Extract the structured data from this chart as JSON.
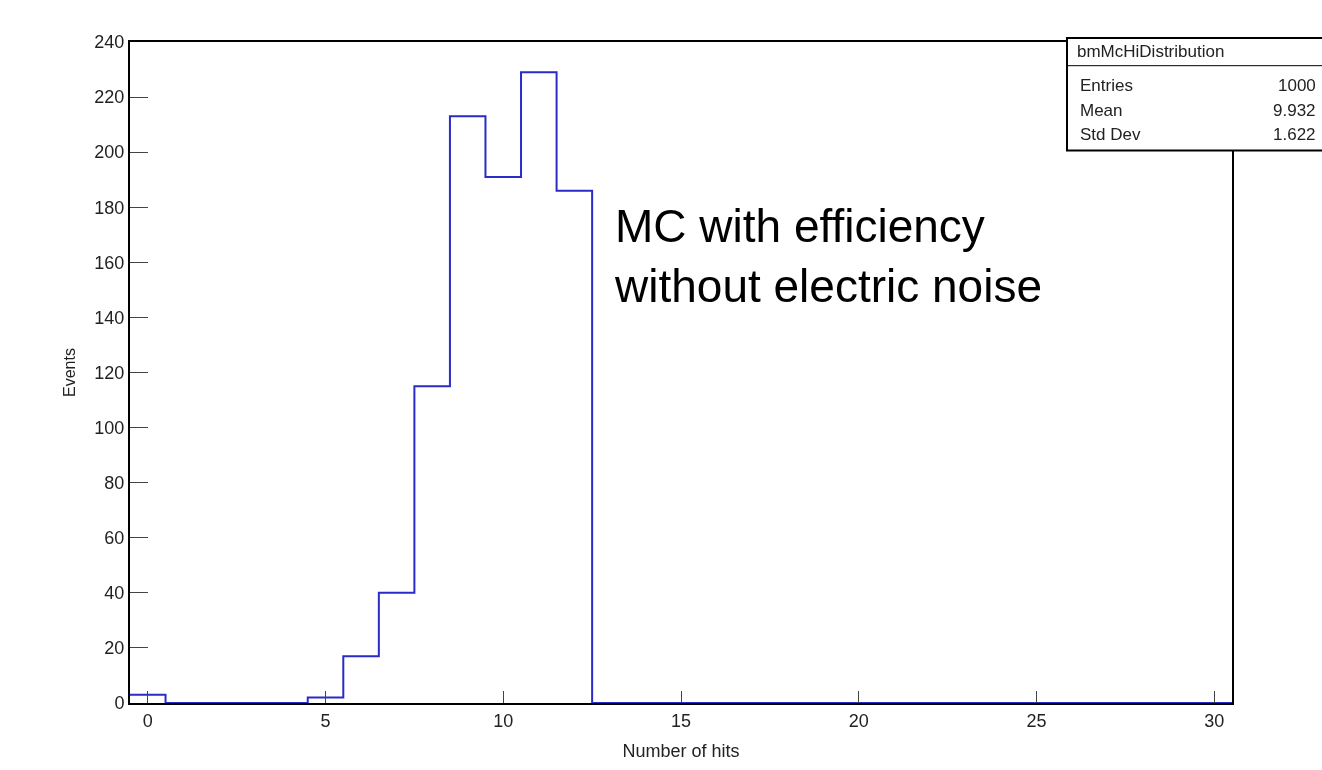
{
  "chart_data": {
    "type": "histogram",
    "xlabel": "Number of hits",
    "ylabel": "Events",
    "bins": [
      -0.5,
      0.5,
      1.5,
      2.5,
      3.5,
      4.5,
      5.5,
      6.5,
      7.5,
      8.5,
      9.5,
      10.5,
      11.5,
      12.5,
      13.5,
      14.5,
      15.5,
      16.5,
      17.5,
      18.5,
      19.5,
      20.5,
      21.5,
      22.5,
      23.5,
      24.5,
      25.5,
      26.5,
      27.5,
      28.5,
      29.5,
      30.5
    ],
    "values": [
      3,
      0,
      0,
      0,
      0,
      2,
      17,
      40,
      115,
      213,
      191,
      229,
      186,
      0,
      0,
      0,
      0,
      0,
      0,
      0,
      0,
      0,
      0,
      0,
      0,
      0,
      0,
      0,
      0,
      0,
      0
    ],
    "color": "#2b2bc8",
    "xlim": [
      -0.5,
      30.5
    ],
    "xticks": [
      0,
      5,
      10,
      15,
      20,
      25,
      30
    ],
    "ylim": [
      0,
      240
    ],
    "yticks": [
      0,
      20,
      40,
      60,
      80,
      100,
      120,
      140,
      160,
      180,
      200,
      220,
      240
    ],
    "annotations": [
      "bmMcHiDistribution",
      "Entries",
      "1000",
      "Mean",
      "9.932",
      "Std Dev",
      "1.622",
      "MC with efficiency\nwithout electric noise"
    ]
  }
}
